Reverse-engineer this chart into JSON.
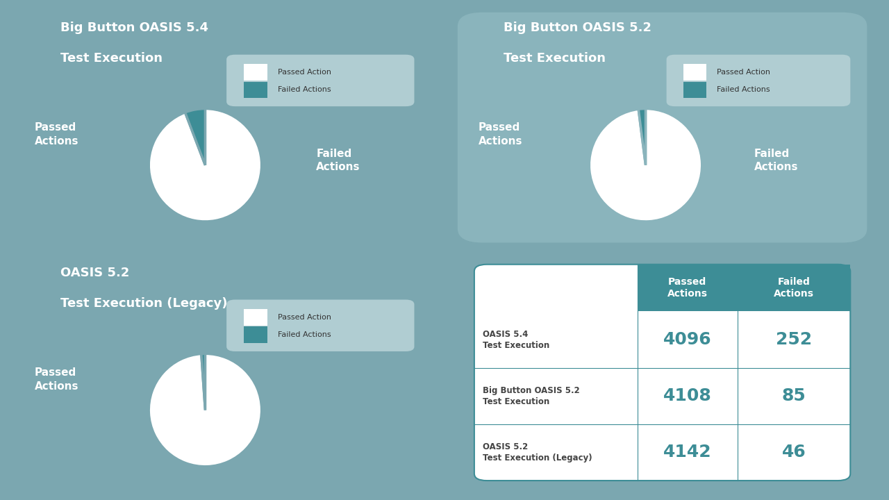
{
  "bg_color": "#7ba7b0",
  "bg_color_right": "#8ab4bc",
  "passed_color": "#ffffff",
  "failed_color": "#3d8d96",
  "legend_bg": "#b0cdd2",
  "charts": [
    {
      "title_line1": "Big Button OASIS 5.4",
      "title_line2": "Test Execution",
      "passed": 4096,
      "failed": 252,
      "label_passed": "Passed\nActions",
      "label_failed": "Failed\nActions"
    },
    {
      "title_line1": "Big Button OASIS 5.2",
      "title_line2": "Test Execution",
      "passed": 4108,
      "failed": 85,
      "label_passed": "Passed\nActions",
      "label_failed": "Failed\nActions"
    },
    {
      "title_line1": "OASIS 5.2",
      "title_line2": "Test Execution (Legacy)",
      "passed": 4142,
      "failed": 46,
      "label_passed": "Passed\nActions",
      "label_failed": ""
    }
  ],
  "table": {
    "rows": [
      {
        "label_line1": "OASIS 5.4",
        "label_line2": "Test Execution",
        "passed": "4096",
        "failed": "252"
      },
      {
        "label_line1": "Big Button OASIS 5.2",
        "label_line2": "Test Execution",
        "passed": "4108",
        "failed": "85"
      },
      {
        "label_line1": "OASIS 5.2",
        "label_line2": "Test Execution (Legacy)",
        "passed": "4142",
        "failed": "46"
      }
    ],
    "header_bg": "#3d8d96",
    "header_text": "#ffffff",
    "border_color": "#3d8d96",
    "value_color": "#3d8d96",
    "label_color": "#444444"
  },
  "legend_label_passed": "Passed Action",
  "legend_label_failed": "Failed Actions"
}
